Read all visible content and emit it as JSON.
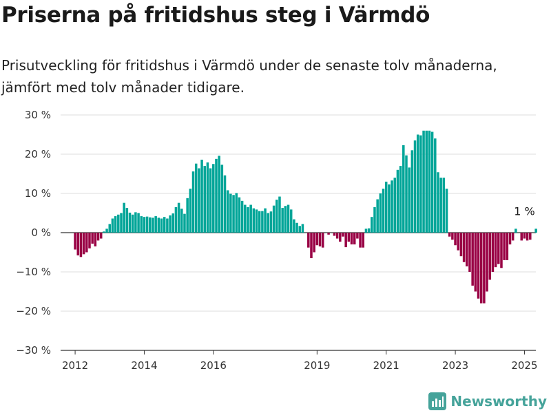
{
  "header": {
    "title": "Priserna på fritidshus steg i Värmdö",
    "subtitle": "Prisutveckling för fritidshus i Värmdö under de senaste tolv månaderna, jämfört med tolv månader tidigare."
  },
  "brand": {
    "name": "Newsworthy"
  },
  "colors": {
    "positive": "#00a598",
    "negative": "#990044",
    "axis": "#333333",
    "grid": "#dddddd"
  },
  "chart_data": {
    "type": "bar",
    "ylim": [
      -30,
      30
    ],
    "ytick_values": [
      30,
      20,
      10,
      0,
      -10,
      -20,
      -30
    ],
    "ytick_labels": [
      "30 %",
      "20 %",
      "10 %",
      "0 %",
      "−10 %",
      "−20 %",
      "−30 %"
    ],
    "xtick_labels": [
      "2012",
      "2014",
      "2016",
      "2019",
      "2021",
      "2023",
      "2025"
    ],
    "xtick_dates": [
      2012.0,
      2014.0,
      2016.0,
      2019.0,
      2021.0,
      2023.0,
      2025.0
    ],
    "annotation": {
      "text": "1 %",
      "date": 2025.0,
      "value": 1
    },
    "grid": true,
    "series": [
      {
        "start": 2012.0,
        "step": 0.08333,
        "values": [
          -4.3,
          -5.8,
          -6.2,
          -5.5,
          -5.0,
          -4.0,
          -2.8,
          -3.5,
          -2.0,
          -1.5,
          0.3,
          1.0,
          2.2,
          3.6,
          4.2,
          4.6,
          5.0,
          7.6,
          6.3,
          5.1,
          4.6,
          5.2,
          5.0,
          4.2,
          4.0,
          4.1,
          3.9,
          3.8,
          4.2,
          3.8,
          3.6,
          4.0,
          3.6,
          4.4,
          4.9,
          6.5,
          7.6,
          6.1,
          4.8,
          8.8,
          11.2,
          15.6,
          17.6,
          16.4,
          18.6,
          17.0,
          17.9,
          16.4,
          17.5,
          18.8,
          19.6,
          17.3,
          14.6,
          10.8,
          9.9,
          9.6,
          10.1,
          9.0,
          8.1,
          7.1,
          6.5,
          7.1,
          6.2,
          5.9,
          5.5,
          5.5,
          6.2,
          5.0,
          5.4,
          6.9,
          8.4,
          9.2,
          6.3,
          6.8,
          7.1,
          5.9,
          3.4,
          2.5,
          1.7,
          2.2,
          0.0,
          0.0,
          0.0,
          0.0,
          0.0,
          0.0,
          0.0,
          0.0,
          0.0,
          0.0,
          0.0,
          0.0,
          0.0,
          0.0,
          0.0,
          0.0,
          0.0,
          0.0,
          0.0,
          0.0,
          0.0,
          0.0,
          0.0,
          0.0,
          0.0,
          0.0,
          0.0,
          0.0,
          0.0,
          0.0,
          0.0,
          0.0,
          0.0,
          0.0,
          0.0,
          0.0,
          0.0,
          0.0,
          0.0,
          0.0,
          0.0,
          0.0,
          0.0,
          0.0,
          0.0,
          0.0,
          0.0,
          0.0,
          0.0,
          0.0,
          0.0,
          0.0,
          0.0,
          0.0,
          0.0,
          0.0,
          0.0,
          0.0,
          0.0,
          0.0,
          0.0,
          0.0,
          0.0,
          0.0,
          0.0,
          0.0,
          0.0,
          0.0,
          0.0,
          0.0,
          0.0,
          0.0,
          0.0,
          0.0,
          0.0,
          0.0,
          0.0,
          0.0,
          0.0,
          0.0,
          0.0,
          0.0,
          0.0,
          0.0,
          0.0
        ]
      },
      {
        "start": 2018.75,
        "step": 0.08333,
        "values": [
          -3.8,
          -6.5,
          -5.0,
          -3.2,
          -3.5,
          -3.8,
          0.0,
          -0.5,
          0.0,
          -0.8,
          -1.5,
          -2.3,
          -1.0,
          -3.7,
          -2.3,
          -3.0,
          -3.0,
          -1.5,
          -3.8,
          -3.8,
          1.0,
          1.1,
          4.0,
          6.5,
          8.5,
          10.0,
          11.2,
          13.0,
          12.3,
          13.3,
          14.0,
          16.0,
          17.0,
          22.3,
          19.7,
          16.6,
          21.0,
          23.5,
          25.0,
          24.8,
          26.0,
          26.0,
          26.0,
          25.7,
          24.0,
          15.4,
          14.0,
          14.0,
          11.2,
          -1.0,
          -1.8,
          -3.2,
          -4.5,
          -6.0,
          -7.5,
          -8.6,
          -10.0,
          -13.5,
          -15.0,
          -16.8,
          -18.0,
          -18.0,
          -15.0,
          -12.0,
          -10.0,
          -8.8,
          -8.0,
          -9.0,
          -7.0,
          -7.0,
          -3.0,
          -2.0,
          1.0,
          0.0,
          -2.0,
          -1.5,
          -2.0,
          -1.8,
          0.0,
          1.0
        ]
      }
    ]
  }
}
